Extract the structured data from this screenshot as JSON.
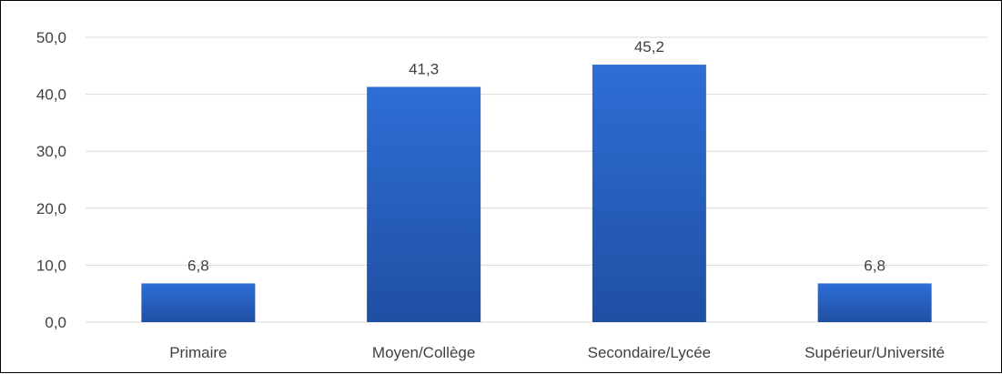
{
  "chart_data": {
    "type": "bar",
    "title": "",
    "xlabel": "",
    "ylabel": "",
    "categories": [
      "Primaire",
      "Moyen/Collège",
      "Secondaire/Lycée",
      "Supérieur/Université"
    ],
    "values": [
      6.8,
      41.3,
      45.2,
      6.8
    ],
    "value_labels": [
      "6,8",
      "41,3",
      "45,2",
      "6,8"
    ],
    "ylim": [
      0,
      50
    ],
    "yticks": [
      0,
      10,
      20,
      30,
      40,
      50
    ],
    "ytick_labels": [
      "0,0",
      "10,0",
      "20,0",
      "30,0",
      "40,0",
      "50,0"
    ],
    "grid": true,
    "legend": "none",
    "colors": {
      "bar_top": "#2E6ED6",
      "bar_bottom": "#1F4FA3",
      "grid": "#D9D9D9",
      "text": "#404040"
    }
  }
}
